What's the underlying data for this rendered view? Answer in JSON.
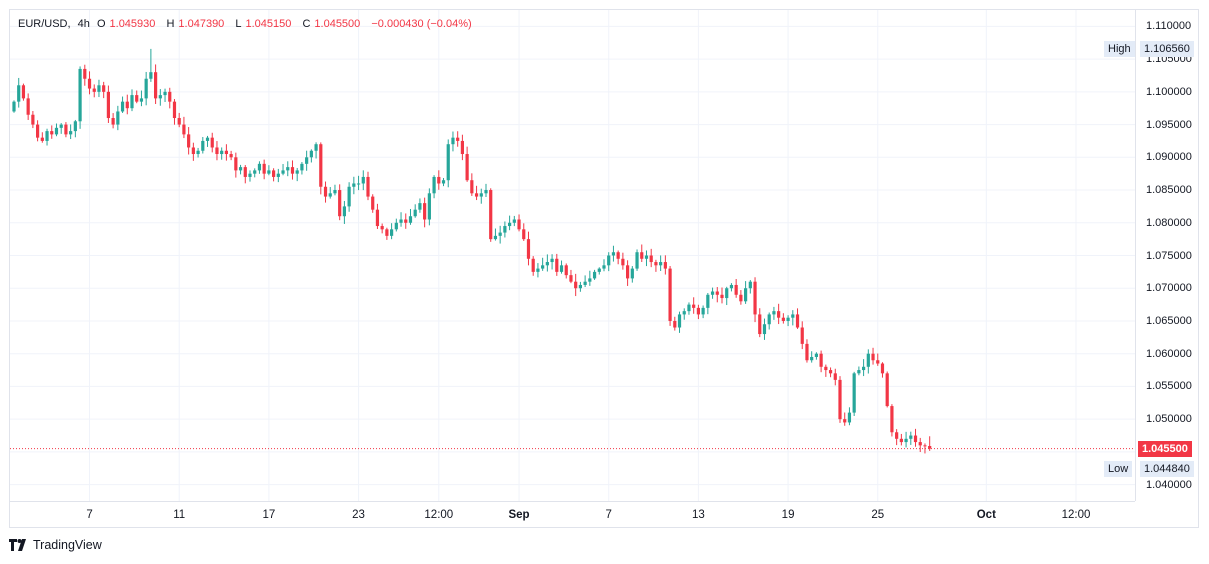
{
  "legend": {
    "symbol": "EUR/USD",
    "interval": "4h",
    "o_label": "O",
    "o_value": "1.045930",
    "h_label": "H",
    "h_value": "1.047390",
    "l_label": "L",
    "l_value": "1.045150",
    "c_label": "C",
    "c_value": "1.045500",
    "change": "−0.000430 (−0.04%)"
  },
  "branding": {
    "name": "TradingView"
  },
  "colors": {
    "up": "#26a69a",
    "down": "#f23645",
    "grid": "#f0f3fa",
    "high_tag_bg": "#e3ebf7",
    "price_tag_bg": "#f23645"
  },
  "chart_data": {
    "type": "candlestick",
    "ylim": [
      1.0375,
      1.1125
    ],
    "y_ticks": [
      "1.110000",
      "1.105000",
      "1.100000",
      "1.095000",
      "1.090000",
      "1.085000",
      "1.080000",
      "1.075000",
      "1.070000",
      "1.065000",
      "1.060000",
      "1.055000",
      "1.050000",
      "1.045000",
      "1.040000"
    ],
    "x_ticks": [
      {
        "label": "7",
        "idx": 16,
        "bold": false
      },
      {
        "label": "11",
        "idx": 35,
        "bold": false
      },
      {
        "label": "17",
        "idx": 54,
        "bold": false
      },
      {
        "label": "23",
        "idx": 73,
        "bold": false
      },
      {
        "label": "12:00",
        "idx": 90,
        "bold": false
      },
      {
        "label": "Sep",
        "idx": 107,
        "bold": true
      },
      {
        "label": "7",
        "idx": 126,
        "bold": false
      },
      {
        "label": "13",
        "idx": 145,
        "bold": false
      },
      {
        "label": "19",
        "idx": 164,
        "bold": false
      },
      {
        "label": "25",
        "idx": 183,
        "bold": false
      },
      {
        "label": "Oct",
        "idx": 206,
        "bold": true
      },
      {
        "label": "12:00",
        "idx": 225,
        "bold": false
      }
    ],
    "last_price": {
      "label": "1.045500",
      "value": 1.0455
    },
    "high": {
      "label": "High",
      "value_label": "1.106560",
      "value": 1.10656
    },
    "low": {
      "label": "Low",
      "value_label": "1.044840",
      "value": 1.04484
    },
    "closes": [
      1.0985,
      1.101,
      1.099,
      1.0965,
      1.095,
      1.093,
      1.0925,
      1.094,
      1.0935,
      1.0945,
      1.095,
      1.0935,
      1.094,
      1.0955,
      1.1035,
      1.102,
      1.1005,
      1.1,
      1.101,
      1.1,
      1.096,
      1.095,
      1.097,
      1.0985,
      1.0975,
      1.0995,
      1.0985,
      1.099,
      1.102,
      1.103,
      1.099,
      1.0995,
      1.1,
      1.0985,
      1.096,
      1.095,
      1.0935,
      1.0915,
      1.0905,
      1.091,
      1.0925,
      1.093,
      1.0915,
      1.0905,
      1.091,
      1.0905,
      1.09,
      1.088,
      1.0885,
      1.087,
      1.0875,
      1.088,
      1.089,
      1.0875,
      1.088,
      1.087,
      1.0875,
      1.088,
      1.0885,
      1.0875,
      1.088,
      1.089,
      1.09,
      1.091,
      1.092,
      1.0855,
      1.084,
      1.0845,
      1.085,
      1.081,
      1.0825,
      1.0855,
      1.086,
      1.086,
      1.087,
      1.084,
      1.082,
      1.0795,
      1.079,
      1.078,
      1.079,
      1.08,
      1.0805,
      1.08,
      1.081,
      1.082,
      1.083,
      1.0805,
      1.0845,
      1.087,
      1.086,
      1.0865,
      1.092,
      1.093,
      1.0925,
      1.0905,
      1.0865,
      1.0845,
      1.084,
      1.0845,
      1.085,
      1.0775,
      1.078,
      1.0785,
      1.0795,
      1.08,
      1.0805,
      1.079,
      1.0775,
      1.0745,
      1.0725,
      1.073,
      1.0735,
      1.074,
      1.0745,
      1.0725,
      1.0735,
      1.072,
      1.071,
      1.07,
      1.0705,
      1.071,
      1.0715,
      1.0725,
      1.073,
      1.0735,
      1.075,
      1.0755,
      1.0745,
      1.0735,
      1.0715,
      1.073,
      1.0755,
      1.0745,
      1.075,
      1.074,
      1.0735,
      1.074,
      1.073,
      1.065,
      1.064,
      1.066,
      1.0665,
      1.0675,
      1.067,
      1.066,
      1.067,
      1.069,
      1.0695,
      1.069,
      1.0685,
      1.07,
      1.0705,
      1.069,
      1.068,
      1.07,
      1.071,
      1.066,
      1.063,
      1.0645,
      1.066,
      1.0665,
      1.0655,
      1.065,
      1.0655,
      1.066,
      1.064,
      1.0615,
      1.059,
      1.0595,
      1.06,
      1.058,
      1.0575,
      1.057,
      1.056,
      1.05,
      1.0495,
      1.051,
      1.057,
      1.0575,
      1.058,
      1.06,
      1.059,
      1.0585,
      1.057,
      1.052,
      1.048,
      1.047,
      1.0465,
      1.047,
      1.0475,
      1.0465,
      1.046,
      1.0459,
      1.0455
    ]
  }
}
